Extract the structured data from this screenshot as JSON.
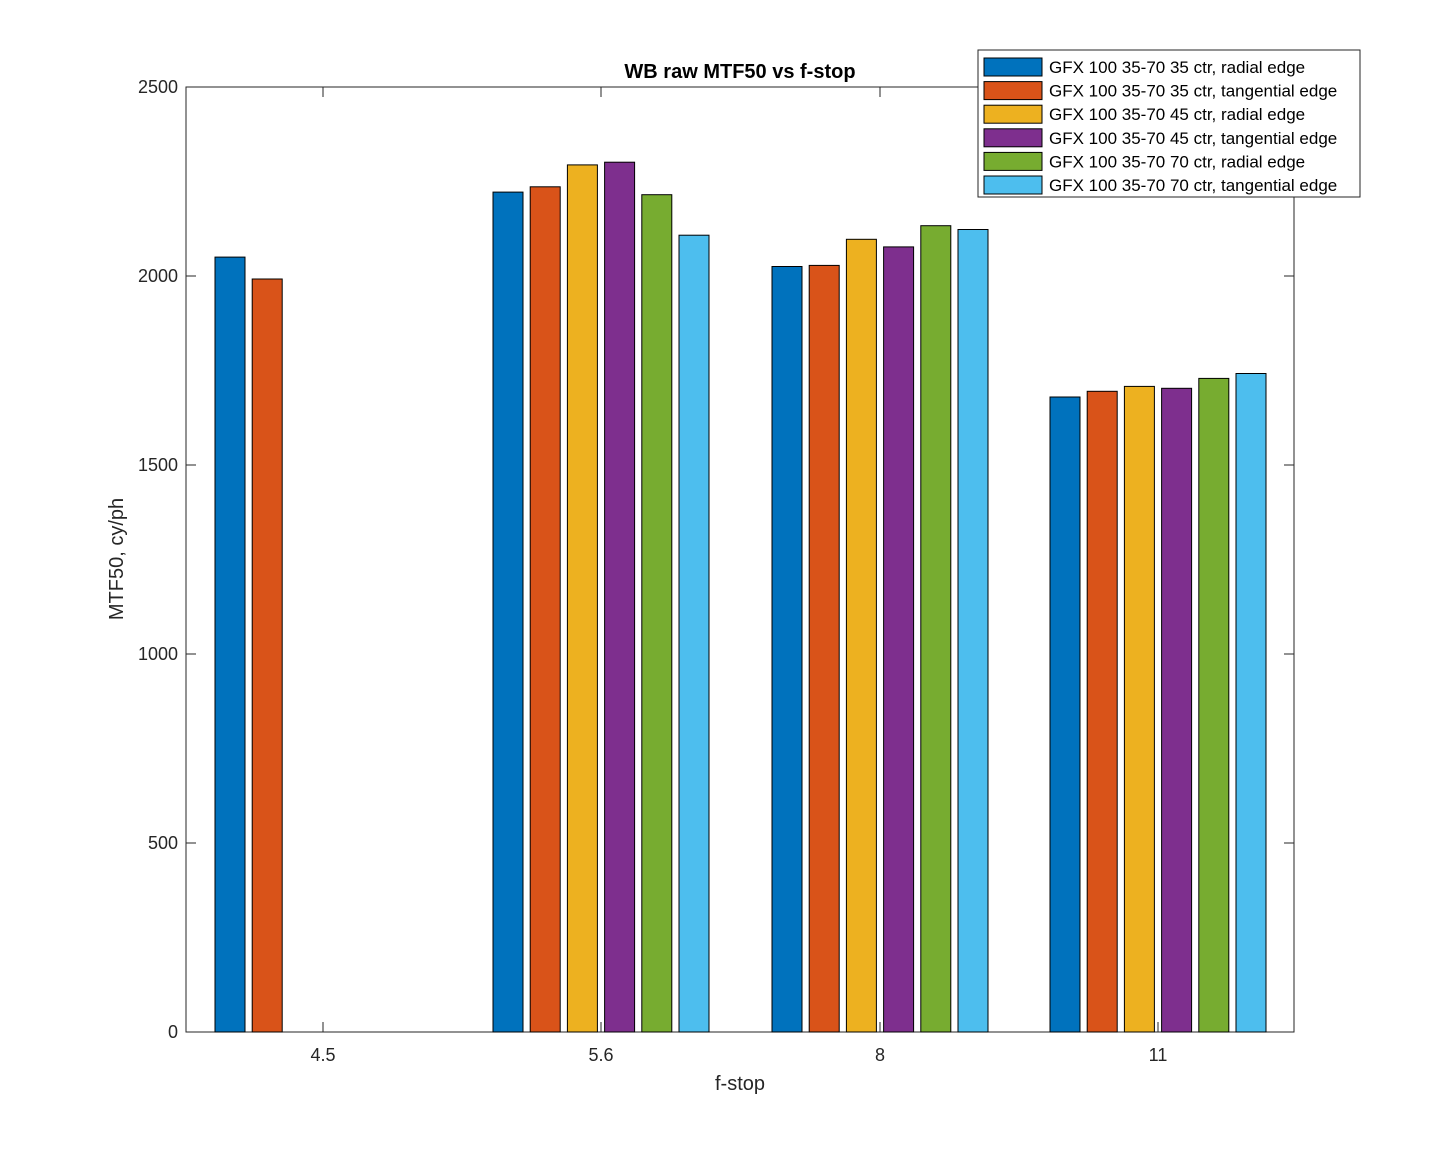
{
  "chart_data": {
    "type": "bar",
    "title": "WB raw MTF50 vs f-stop",
    "xlabel": "f-stop",
    "ylabel": "MTF50, cy/ph",
    "ylim": [
      0,
      2500
    ],
    "yticks": [
      0,
      500,
      1000,
      1500,
      2000,
      2500
    ],
    "categories": [
      "4.5",
      "5.6",
      "8",
      "11"
    ],
    "legend_position": "top-right",
    "grid": false,
    "series": [
      {
        "name": "GFX 100 35-70 35 ctr, radial edge",
        "color": "#0072BD",
        "values": [
          2050,
          2222,
          2025,
          1680
        ]
      },
      {
        "name": "GFX 100 35-70 35 ctr, tangential edge",
        "color": "#D95319",
        "values": [
          1992,
          2236,
          2028,
          1695
        ]
      },
      {
        "name": "GFX 100 35-70 45 ctr, radial edge",
        "color": "#EDB120",
        "values": [
          null,
          2294,
          2097,
          1708
        ]
      },
      {
        "name": "GFX 100 35-70 45 ctr, tangential edge",
        "color": "#7E2F8E",
        "values": [
          null,
          2301,
          2077,
          1703
        ]
      },
      {
        "name": "GFX 100 35-70 70 ctr, radial edge",
        "color": "#77AC30",
        "values": [
          null,
          2215,
          2133,
          1729
        ]
      },
      {
        "name": "GFX 100 35-70 70 ctr, tangential edge",
        "color": "#4DBEEE",
        "values": [
          null,
          2108,
          2123,
          1742
        ]
      }
    ]
  }
}
